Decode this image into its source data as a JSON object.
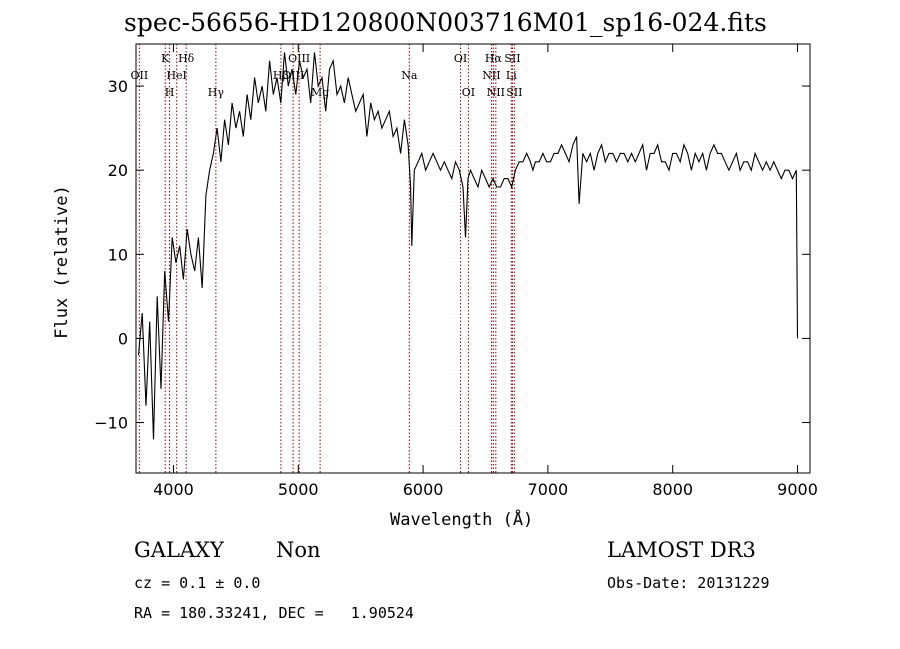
{
  "chart_data": {
    "type": "line",
    "title": "spec-56656-HD120800N003716M01_sp16-024.fits",
    "xlabel": "Wavelength (Å)",
    "ylabel": "Flux (relative)",
    "xlim": [
      3700,
      9100
    ],
    "ylim": [
      -16,
      35
    ],
    "x_ticks": [
      4000,
      5000,
      6000,
      7000,
      8000,
      9000
    ],
    "y_ticks": [
      -10,
      0,
      10,
      20,
      30
    ],
    "grid": false,
    "line_color": "#000000",
    "marker_color": "#990000",
    "series": [
      {
        "x": [
          3720,
          3750,
          3780,
          3810,
          3840,
          3870,
          3900,
          3930,
          3960,
          3990,
          4020,
          4050,
          4080,
          4110,
          4140,
          4170,
          4200,
          4230,
          4260,
          4290,
          4320,
          4350,
          4380,
          4410,
          4440,
          4470,
          4500,
          4530,
          4560,
          4590,
          4620,
          4650,
          4680,
          4710,
          4740,
          4770,
          4800,
          4830,
          4860,
          4890,
          4920,
          4950,
          4980,
          5010,
          5040,
          5070,
          5100,
          5130,
          5160,
          5190,
          5220,
          5250,
          5280,
          5310,
          5340,
          5370,
          5400,
          5430,
          5460,
          5490,
          5520,
          5550,
          5580,
          5610,
          5640,
          5670,
          5700,
          5730,
          5760,
          5790,
          5820,
          5850,
          5880,
          5900,
          5910,
          5930,
          5960,
          5990,
          6020,
          6050,
          6080,
          6110,
          6140,
          6170,
          6200,
          6230,
          6260,
          6290,
          6320,
          6340,
          6360,
          6380,
          6410,
          6440,
          6470,
          6500,
          6530,
          6560,
          6590,
          6620,
          6650,
          6680,
          6710,
          6740,
          6770,
          6800,
          6830,
          6860,
          6880,
          6900,
          6930,
          6960,
          6990,
          7020,
          7050,
          7080,
          7110,
          7140,
          7170,
          7200,
          7230,
          7250,
          7280,
          7310,
          7340,
          7370,
          7400,
          7430,
          7460,
          7490,
          7520,
          7550,
          7580,
          7610,
          7640,
          7670,
          7700,
          7730,
          7760,
          7790,
          7820,
          7850,
          7880,
          7910,
          7940,
          7970,
          8000,
          8030,
          8060,
          8090,
          8120,
          8150,
          8180,
          8210,
          8240,
          8270,
          8300,
          8330,
          8360,
          8390,
          8420,
          8450,
          8480,
          8510,
          8540,
          8570,
          8600,
          8630,
          8660,
          8690,
          8720,
          8750,
          8780,
          8810,
          8840,
          8870,
          8900,
          8930,
          8960,
          8990,
          9000
        ],
        "y": [
          -2,
          3,
          -8,
          2,
          -12,
          5,
          -6,
          8,
          2,
          12,
          9,
          11,
          7,
          13,
          10,
          8,
          12,
          6,
          17,
          20,
          22,
          25,
          21,
          26,
          23,
          28,
          25,
          27,
          24,
          29,
          26,
          31,
          28,
          30,
          27,
          33,
          29,
          31,
          28,
          34,
          30,
          32,
          29,
          33,
          31,
          32,
          28,
          34,
          30,
          31,
          27,
          32,
          33,
          29,
          30,
          28,
          31,
          29,
          27,
          28,
          29,
          24,
          28,
          26,
          27,
          25,
          26,
          27,
          24,
          25,
          22,
          26,
          23,
          18,
          11,
          20,
          21,
          22,
          20,
          21,
          22,
          21,
          20,
          21,
          20,
          19,
          21,
          20,
          18,
          12,
          19,
          20,
          19,
          18,
          20,
          19,
          18,
          19,
          18,
          18,
          19,
          19,
          18,
          20,
          21,
          21,
          22,
          21,
          20,
          21,
          21,
          22,
          21,
          21,
          22,
          22,
          23,
          22,
          21,
          23,
          24,
          16,
          22,
          21,
          22,
          20,
          22,
          23,
          21,
          22,
          22,
          21,
          22,
          22,
          21,
          22,
          21,
          22,
          23,
          20,
          22,
          22,
          23,
          21,
          21,
          20,
          22,
          22,
          21,
          23,
          22,
          20,
          22,
          21,
          22,
          20,
          22,
          23,
          22,
          22,
          21,
          20,
          21,
          22,
          20,
          21,
          21,
          20,
          22,
          21,
          20,
          21,
          20,
          21,
          20,
          19,
          20,
          20,
          19,
          20,
          0
        ]
      }
    ],
    "line_markers": [
      {
        "x": 3727,
        "label": "OII",
        "tier": 2
      },
      {
        "x": 3934,
        "label": "K",
        "tier": 1
      },
      {
        "x": 3969,
        "label": "H",
        "tier": 3
      },
      {
        "x": 4026,
        "label": "HeI",
        "tier": 2
      },
      {
        "x": 4102,
        "label": "Hδ",
        "tier": 1
      },
      {
        "x": 4340,
        "label": "Hγ",
        "tier": 3
      },
      {
        "x": 4861,
        "label": "Hβ",
        "tier": 2
      },
      {
        "x": 4959,
        "label": "OIII",
        "tier": 2
      },
      {
        "x": 5007,
        "label": "OIII",
        "tier": 1
      },
      {
        "x": 5175,
        "label": "Mg",
        "tier": 3
      },
      {
        "x": 5890,
        "label": "Na",
        "tier": 2
      },
      {
        "x": 6300,
        "label": "OI",
        "tier": 1
      },
      {
        "x": 6363,
        "label": "OI",
        "tier": 3
      },
      {
        "x": 6548,
        "label": "NII",
        "tier": 2
      },
      {
        "x": 6563,
        "label": "Hα",
        "tier": 1
      },
      {
        "x": 6583,
        "label": "NII",
        "tier": 3
      },
      {
        "x": 6707,
        "label": "Li",
        "tier": 2
      },
      {
        "x": 6716,
        "label": "SII",
        "tier": 1
      },
      {
        "x": 6731,
        "label": "SII",
        "tier": 3
      }
    ]
  },
  "info": {
    "class_label": "GALAXY",
    "subclass_label": "Non",
    "survey_label": "LAMOST DR3",
    "cz_text": "cz = 0.1 ± 0.0",
    "obs_date_text": "Obs-Date: 20131229",
    "radec_text": "RA = 180.33241, DEC =   1.90524"
  }
}
